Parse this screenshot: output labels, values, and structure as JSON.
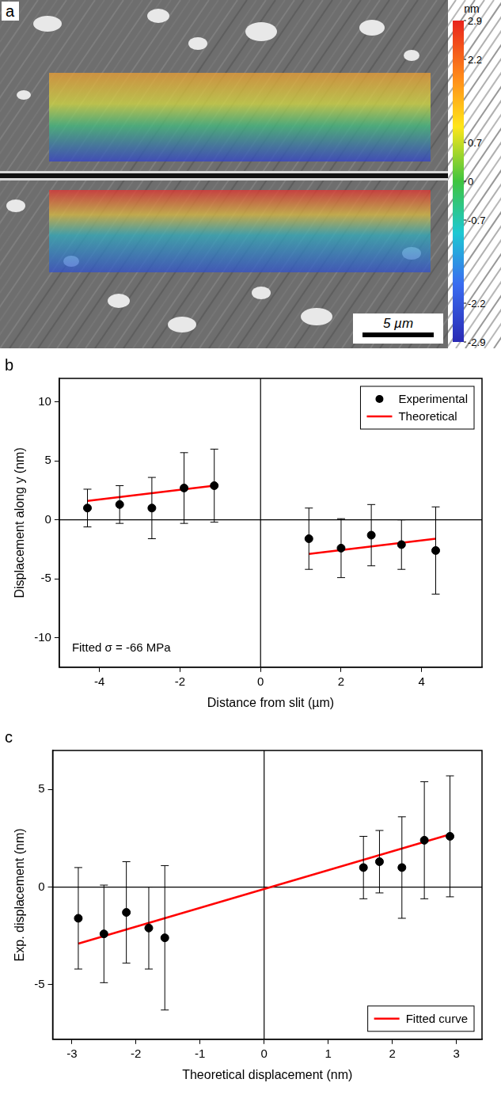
{
  "image_panel": {
    "panel_label": "a",
    "scale_bar": "5 µm",
    "colorbar": {
      "title": "nm",
      "range": [
        -2.9,
        2.9
      ],
      "ticks": [
        2.9,
        2.2,
        0.7,
        0,
        -0.7,
        -2.2,
        -2.9
      ]
    }
  },
  "chart_data": [
    {
      "panel_label": "b",
      "type": "scatter",
      "x_label": "Distance from slit (µm)",
      "y_label": "Displacement along y (nm)",
      "annotation": "Fitted σ = -66 MPa",
      "xlim": [
        -5,
        5.5
      ],
      "xticks": [
        -4,
        -2,
        0,
        2,
        4
      ],
      "ylim": [
        -12.5,
        12
      ],
      "yticks": [
        -10,
        -5,
        0,
        5,
        10
      ],
      "grid": false,
      "legend": "upper right",
      "reference_lines": [
        {
          "axis": "x",
          "value": 0
        },
        {
          "axis": "y",
          "value": 0
        }
      ],
      "series": [
        {
          "name": "Experimental",
          "type": "scatter",
          "marker": "circle",
          "color": "#000000",
          "x": [
            -4.3,
            -3.5,
            -2.7,
            -1.9,
            -1.15,
            1.2,
            2.0,
            2.75,
            3.5,
            4.35
          ],
          "values": [
            1.0,
            1.3,
            1.0,
            2.7,
            2.9,
            -1.6,
            -2.4,
            -1.3,
            -2.1,
            -2.6
          ],
          "errors": [
            1.6,
            1.6,
            2.6,
            3.0,
            3.1,
            2.6,
            2.5,
            2.6,
            2.1,
            3.7
          ]
        },
        {
          "name": "Theoretical",
          "type": "line",
          "line_style": "solid",
          "color": "#ff0000",
          "x": [
            -4.3,
            -1.15,
            0,
            1.2,
            4.35
          ],
          "values": [
            1.6,
            2.9,
            null,
            -2.9,
            -1.6
          ]
        }
      ]
    },
    {
      "panel_label": "c",
      "type": "scatter",
      "x_label": "Theoretical displacement (nm)",
      "y_label": "Exp. displacement (nm)",
      "xlim": [
        -3.3,
        3.4
      ],
      "xticks": [
        -3,
        -2,
        -1,
        0,
        1,
        2,
        3
      ],
      "ylim": [
        -7.8,
        7
      ],
      "yticks": [
        -5,
        0,
        5
      ],
      "grid": false,
      "legend": "lower right",
      "reference_lines": [
        {
          "axis": "x",
          "value": 0
        },
        {
          "axis": "y",
          "value": 0
        }
      ],
      "series": [
        {
          "type": "scatter",
          "marker": "circle",
          "color": "#000000",
          "x": [
            -2.9,
            -2.5,
            -2.15,
            -1.8,
            -1.55,
            1.55,
            1.8,
            2.15,
            2.5,
            2.9
          ],
          "values": [
            -1.6,
            -2.4,
            -1.3,
            -2.1,
            -2.6,
            1.0,
            1.3,
            1.0,
            2.4,
            2.6
          ],
          "errors": [
            2.6,
            2.5,
            2.6,
            2.1,
            3.7,
            1.6,
            1.6,
            2.6,
            3.0,
            3.1
          ]
        },
        {
          "name": "Fitted curve",
          "type": "line",
          "line_style": "solid",
          "color": "#ff0000",
          "x": [
            -2.9,
            2.9
          ],
          "values": [
            -2.9,
            2.7
          ]
        }
      ]
    }
  ]
}
